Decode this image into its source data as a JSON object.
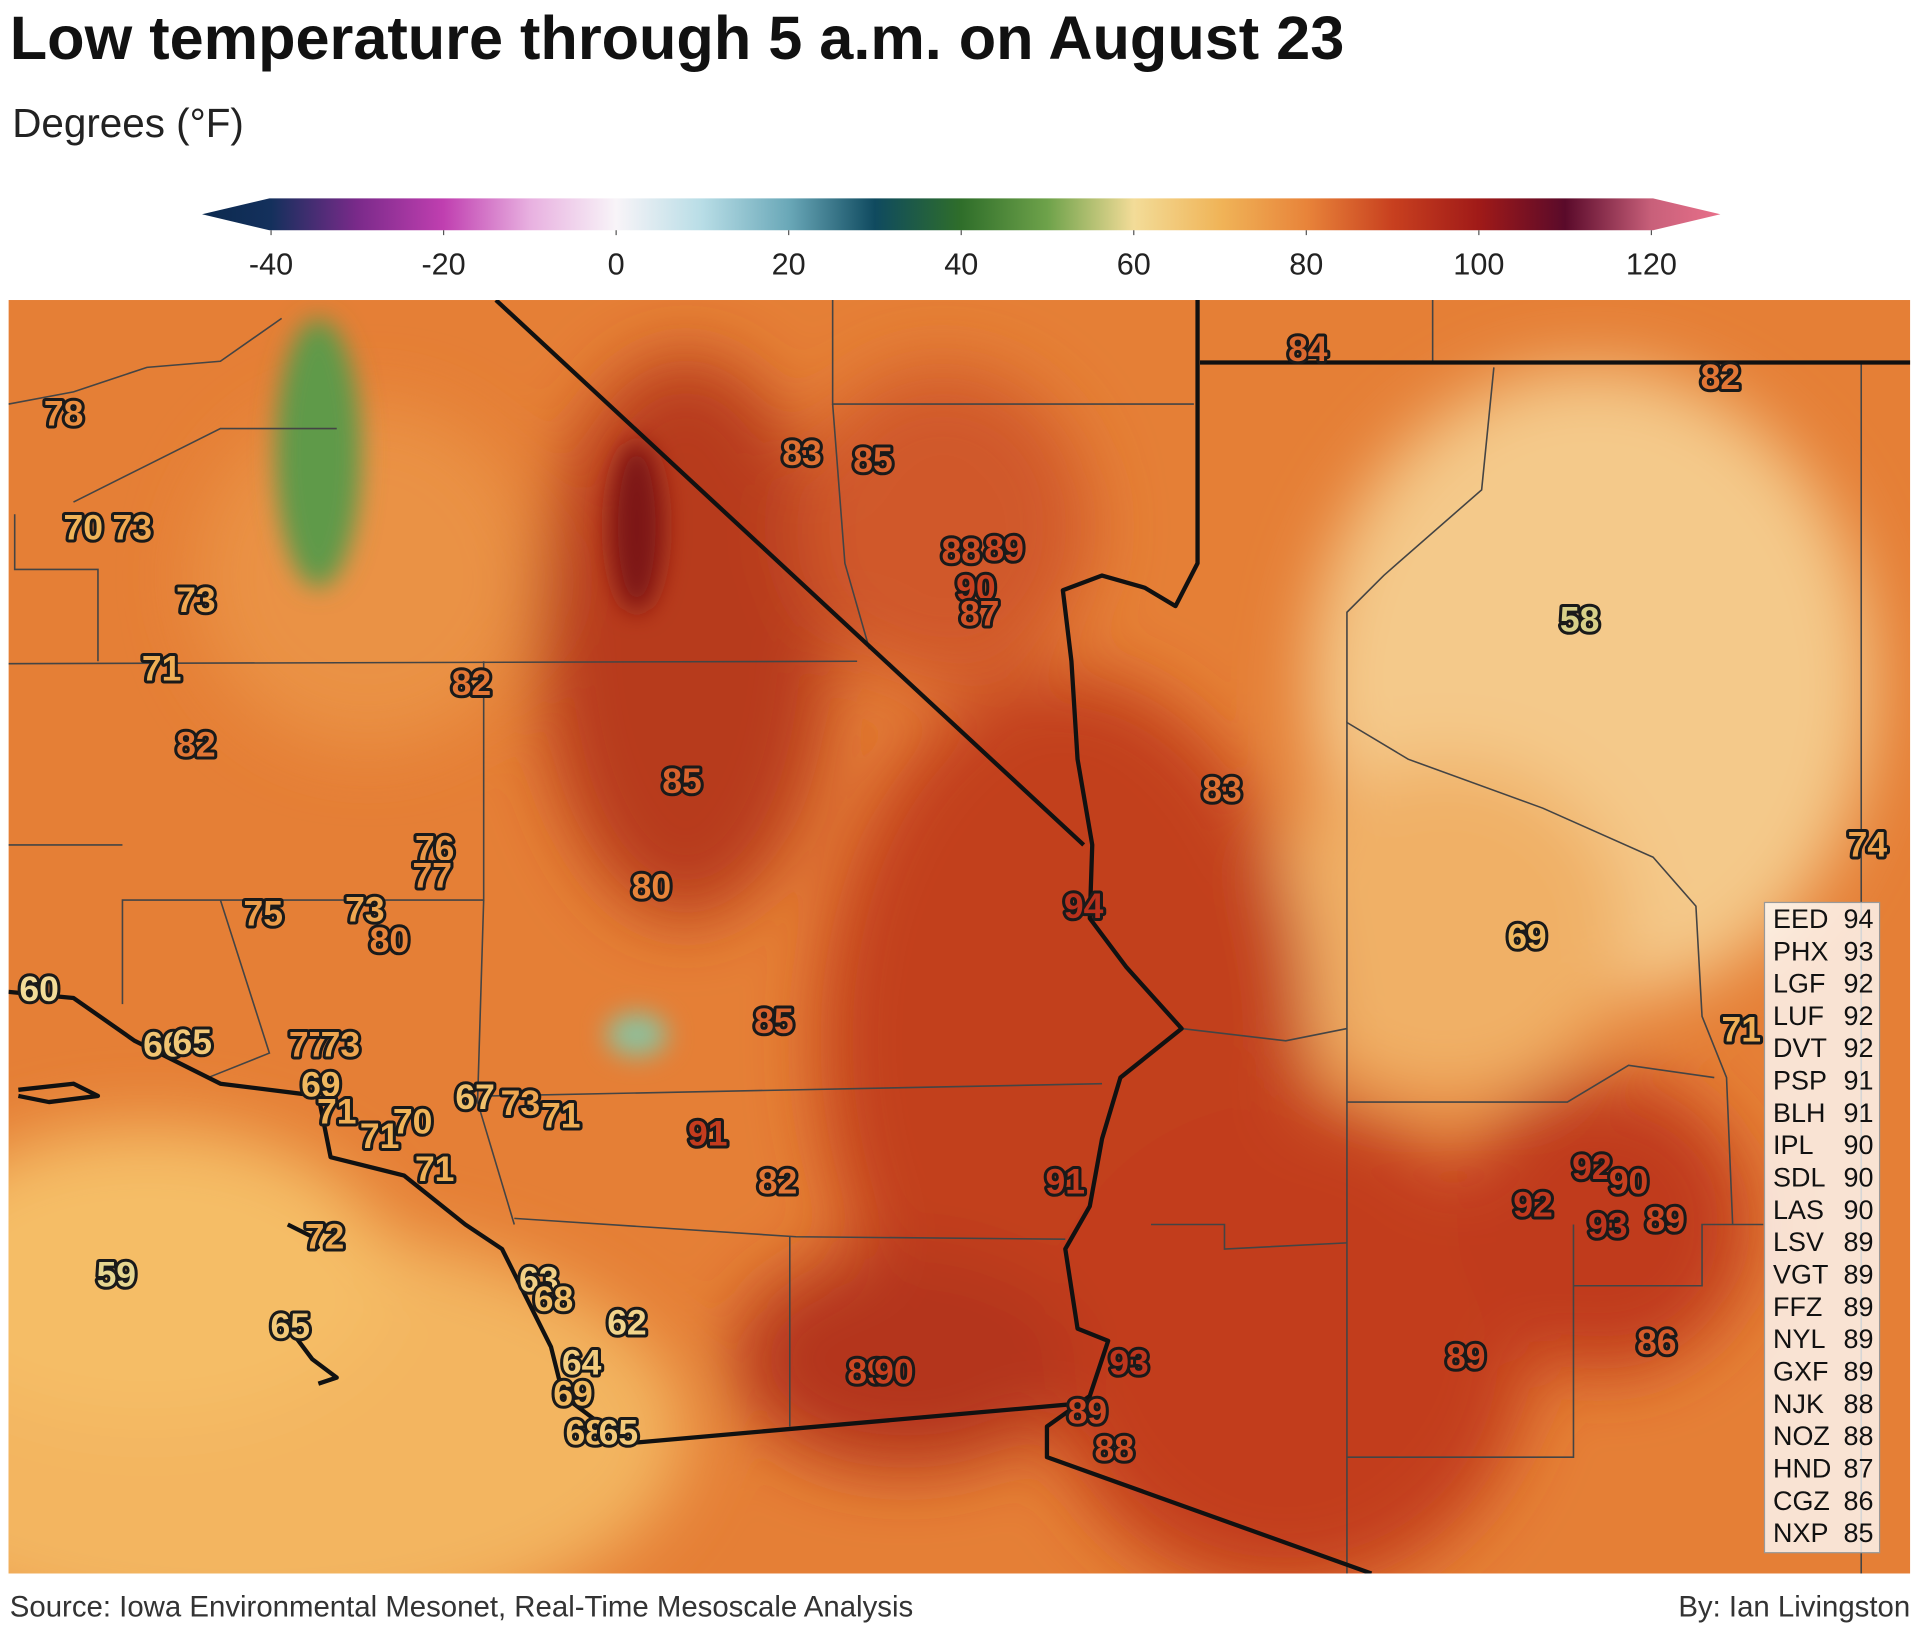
{
  "header": {
    "title": "Low temperature through 5 a.m. on August 23",
    "subtitle": "Degrees (°F)"
  },
  "colorbar": {
    "lim": [
      -48,
      128
    ],
    "ticks": [
      -40,
      -20,
      0,
      20,
      40,
      60,
      80,
      100,
      120
    ]
  },
  "map_labels": [
    78,
    70,
    73,
    73,
    71,
    82,
    82,
    76,
    77,
    75,
    73,
    80,
    60,
    66,
    65,
    77,
    73,
    69,
    71,
    70,
    71,
    71,
    67,
    73,
    71,
    72,
    59,
    65,
    63,
    68,
    62,
    64,
    69,
    68,
    65,
    83,
    85,
    88,
    89,
    90,
    87,
    85,
    80,
    85,
    91,
    82,
    89,
    90,
    94,
    91,
    93,
    89,
    88,
    84,
    82,
    58,
    83,
    74,
    69,
    71,
    92,
    90,
    92,
    93,
    89,
    89,
    86
  ],
  "station_table": [
    {
      "code": "EED",
      "value": 94
    },
    {
      "code": "PHX",
      "value": 93
    },
    {
      "code": "LGF",
      "value": 92
    },
    {
      "code": "LUF",
      "value": 92
    },
    {
      "code": "DVT",
      "value": 92
    },
    {
      "code": "PSP",
      "value": 91
    },
    {
      "code": "BLH",
      "value": 91
    },
    {
      "code": "IPL",
      "value": 90
    },
    {
      "code": "SDL",
      "value": 90
    },
    {
      "code": "LAS",
      "value": 90
    },
    {
      "code": "LSV",
      "value": 89
    },
    {
      "code": "VGT",
      "value": 89
    },
    {
      "code": "FFZ",
      "value": 89
    },
    {
      "code": "NYL",
      "value": 89
    },
    {
      "code": "GXF",
      "value": 89
    },
    {
      "code": "NJK",
      "value": 88
    },
    {
      "code": "NOZ",
      "value": 88
    },
    {
      "code": "HND",
      "value": 87
    },
    {
      "code": "CGZ",
      "value": 86
    },
    {
      "code": "NXP",
      "value": 85
    }
  ],
  "footer": {
    "source": "Source: Iowa Environmental Mesonet, Real-Time Mesoscale Analysis",
    "credit": "By: Ian Livingston"
  }
}
